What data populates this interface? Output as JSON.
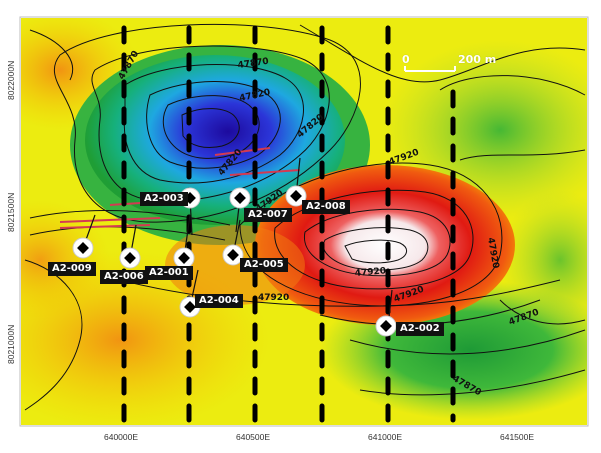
{
  "map": {
    "scale_bar": {
      "zero_label": "0",
      "length_label": "200 m"
    },
    "x_axis_labels": [
      "640000E",
      "640500E",
      "641000E",
      "641500E"
    ],
    "y_axis_labels": [
      "8022000N",
      "8021500N",
      "8021000N"
    ],
    "contour_labels": [
      "47870",
      "47820",
      "47870",
      "47820",
      "47920",
      "47920",
      "47920",
      "47920",
      "47870",
      "47870",
      "47820",
      "47920",
      "47920"
    ],
    "drill_holes": [
      "A2-003",
      "A2-007",
      "A2-008",
      "A2-009",
      "A2-006",
      "A2-001",
      "A2-005",
      "A2-004",
      "A2-002"
    ],
    "colors": {
      "low": "#1a0fc8",
      "mid_low": "#19b4e6",
      "mid": "#1fa83a",
      "mid_high": "#f2f000",
      "high": "#e51a14",
      "peak": "#ffffff",
      "frame": "#d8d8d8",
      "grid_line": "#000000",
      "trace_red": "#d43a52"
    }
  }
}
